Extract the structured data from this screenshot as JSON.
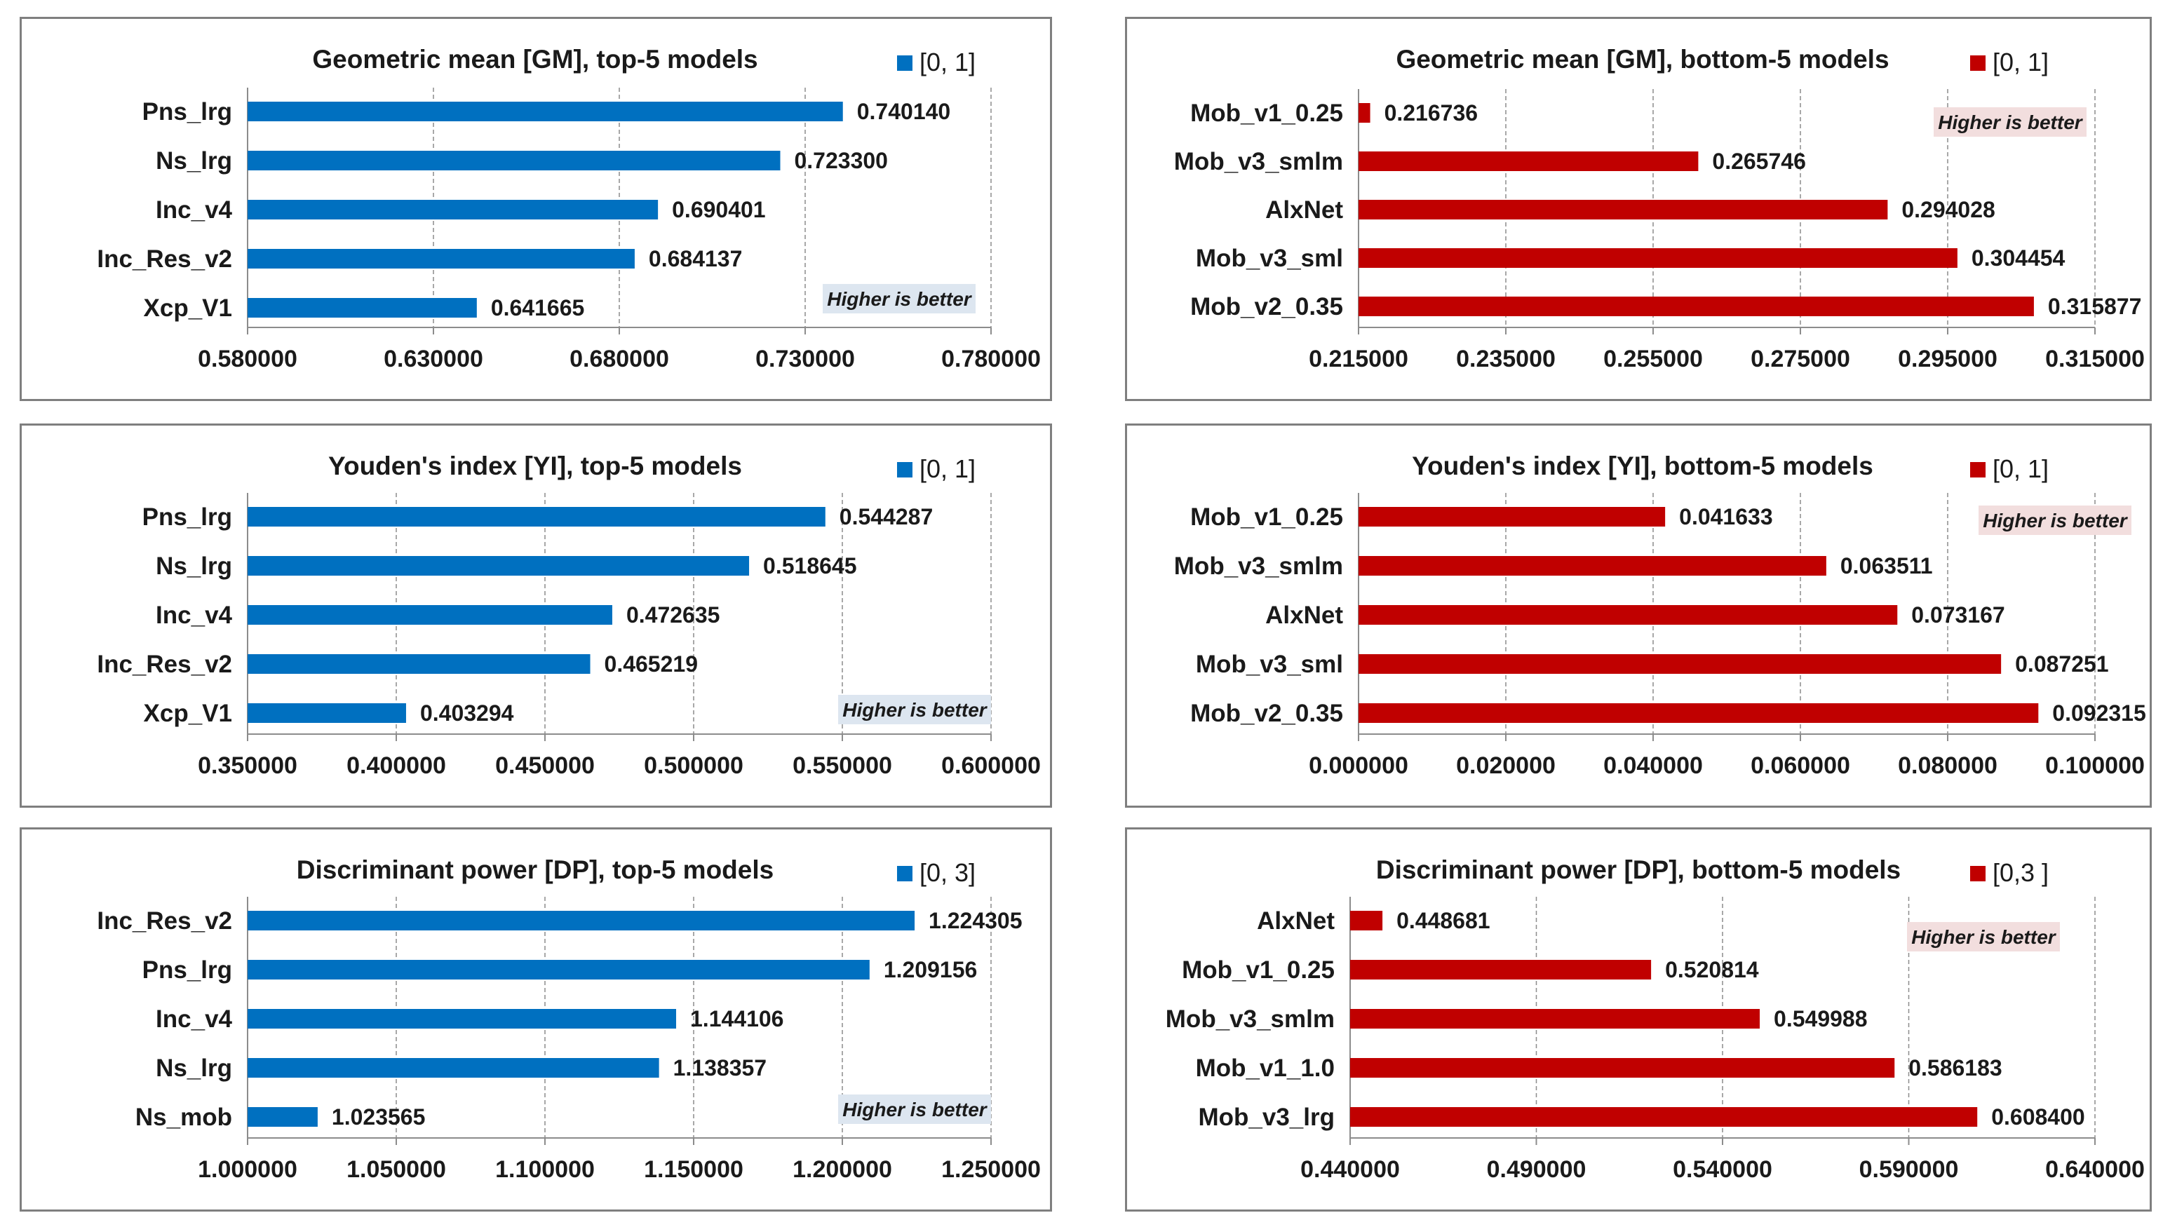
{
  "colors": {
    "top": "#0070c0",
    "bottom": "#c00000",
    "note_top_bg": "#dde6f0",
    "note_bottom_bg": "#f2dede"
  },
  "chart_data": [
    {
      "id": "gm-top",
      "type": "bar",
      "orientation": "horizontal",
      "title": "Geometric mean [GM], top-5 models",
      "legend": "[0, 1]",
      "note": "Higher is better",
      "color_key": "top",
      "categories": [
        "Pns_lrg",
        "Ns_lrg",
        "Inc_v4",
        "Inc_Res_v2",
        "Xcp_V1"
      ],
      "values": [
        0.74014,
        0.7233,
        0.690401,
        0.684137,
        0.641665
      ],
      "value_labels": [
        "0.740140",
        "0.723300",
        "0.690401",
        "0.684137",
        "0.641665"
      ],
      "xlim": [
        0.58,
        0.78
      ],
      "ticks": [
        "0.580000",
        "0.630000",
        "0.680000",
        "0.730000",
        "0.780000"
      ],
      "grid": true,
      "legend_position": "top-right",
      "note_position": "bottom-right"
    },
    {
      "id": "gm-bottom",
      "type": "bar",
      "orientation": "horizontal",
      "title": "Geometric mean [GM], bottom-5 models",
      "legend": "[0, 1]",
      "note": "Higher is better",
      "color_key": "bottom",
      "categories": [
        "Mob_v1_0.25",
        "Mob_v3_smlm",
        "AlxNet",
        "Mob_v3_sml",
        "Mob_v2_0.35"
      ],
      "values": [
        0.216736,
        0.265746,
        0.294028,
        0.304454,
        0.315877
      ],
      "value_labels": [
        "0.216736",
        "0.265746",
        "0.294028",
        "0.304454",
        "0.315877"
      ],
      "xlim": [
        0.215,
        0.325
      ],
      "ticks": [
        "0.215000",
        "0.235000",
        "0.255000",
        "0.275000",
        "0.295000",
        "0.315000"
      ],
      "grid": true,
      "legend_position": "top-right",
      "note_position": "top-right"
    },
    {
      "id": "yi-top",
      "type": "bar",
      "orientation": "horizontal",
      "title": "Youden's index [YI], top-5 models",
      "legend": "[0, 1]",
      "note": "Higher is better",
      "color_key": "top",
      "categories": [
        "Pns_lrg",
        "Ns_lrg",
        "Inc_v4",
        "Inc_Res_v2",
        "Xcp_V1"
      ],
      "values": [
        0.544287,
        0.518645,
        0.472635,
        0.465219,
        0.403294
      ],
      "value_labels": [
        "0.544287",
        "0.518645",
        "0.472635",
        "0.465219",
        "0.403294"
      ],
      "xlim": [
        0.35,
        0.6
      ],
      "ticks": [
        "0.350000",
        "0.400000",
        "0.450000",
        "0.500000",
        "0.550000",
        "0.600000"
      ],
      "grid": true,
      "legend_position": "top-right",
      "note_position": "bottom-right"
    },
    {
      "id": "yi-bottom",
      "type": "bar",
      "orientation": "horizontal",
      "title": "Youden's index [YI], bottom-5 models",
      "legend": "[0, 1]",
      "note": "Higher is better",
      "color_key": "bottom",
      "categories": [
        "Mob_v1_0.25",
        "Mob_v3_smlm",
        "AlxNet",
        "Mob_v3_sml",
        "Mob_v2_0.35"
      ],
      "values": [
        0.041633,
        0.063511,
        0.073167,
        0.087251,
        0.092315
      ],
      "value_labels": [
        "0.041633",
        "0.063511",
        "0.073167",
        "0.087251",
        "0.092315"
      ],
      "xlim": [
        0.0,
        0.1
      ],
      "ticks": [
        "0.000000",
        "0.020000",
        "0.040000",
        "0.060000",
        "0.080000",
        "0.100000"
      ],
      "grid": true,
      "legend_position": "top-right",
      "note_position": "top-right"
    },
    {
      "id": "dp-top",
      "type": "bar",
      "orientation": "horizontal",
      "title": "Discriminant power [DP], top-5 models",
      "legend": "[0, 3]",
      "note": "Higher is better",
      "color_key": "top",
      "categories": [
        "Inc_Res_v2",
        "Pns_lrg",
        "Inc_v4",
        "Ns_lrg",
        "Ns_mob"
      ],
      "values": [
        1.224305,
        1.209156,
        1.144106,
        1.138357,
        1.023565
      ],
      "value_labels": [
        "1.224305",
        "1.209156",
        "1.144106",
        "1.138357",
        "1.023565"
      ],
      "xlim": [
        1.0,
        1.25
      ],
      "ticks": [
        "1.000000",
        "1.050000",
        "1.100000",
        "1.150000",
        "1.200000",
        "1.250000"
      ],
      "grid": true,
      "legend_position": "top-right",
      "note_position": "bottom-right"
    },
    {
      "id": "dp-bottom",
      "type": "bar",
      "orientation": "horizontal",
      "title": "Discriminant power [DP], bottom-5 models",
      "legend": "[0,3 ]",
      "note": "Higher is better",
      "color_key": "bottom",
      "categories": [
        "AlxNet",
        "Mob_v1_0.25",
        "Mob_v3_smlm",
        "Mob_v1_1.0",
        "Mob_v3_lrg"
      ],
      "values": [
        0.448681,
        0.520814,
        0.549988,
        0.586183,
        0.6084
      ],
      "value_labels": [
        "0.448681",
        "0.520814",
        "0.549988",
        "0.586183",
        "0.608400"
      ],
      "xlim": [
        0.44,
        0.64
      ],
      "ticks": [
        "0.440000",
        "0.490000",
        "0.540000",
        "0.590000",
        "0.640000"
      ],
      "grid": true,
      "legend_position": "top-right",
      "note_position": "top-right"
    }
  ]
}
